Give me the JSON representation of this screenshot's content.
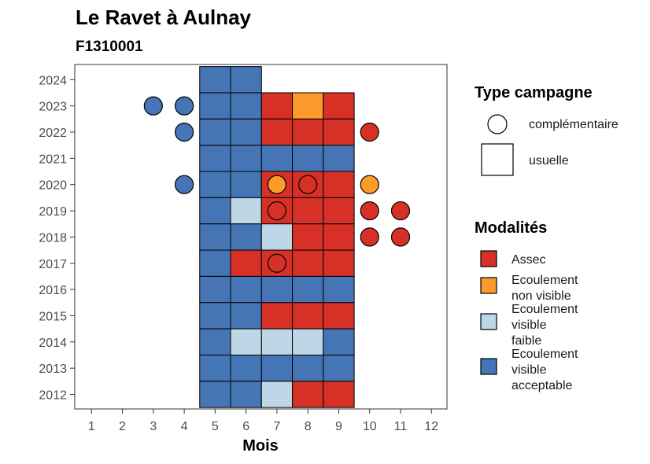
{
  "chart_data": {
    "type": "heatmap",
    "title": "Le Ravet à Aulnay",
    "subtitle": "F1310001",
    "xlabel": "Mois",
    "ylabel": "",
    "x_ticks": [
      "1",
      "2",
      "3",
      "4",
      "5",
      "6",
      "7",
      "8",
      "9",
      "10",
      "11",
      "12"
    ],
    "y_ticks": [
      "2012",
      "2013",
      "2014",
      "2015",
      "2016",
      "2017",
      "2018",
      "2019",
      "2020",
      "2021",
      "2022",
      "2023",
      "2024"
    ],
    "xlim": [
      0.5,
      12.5
    ],
    "ylim": [
      2011.5,
      2024.5
    ],
    "grid": false,
    "legend_position": "right",
    "modalities": [
      {
        "key": "assec",
        "label_lines": [
          "Assec"
        ],
        "color": "#d73027"
      },
      {
        "key": "nonvis",
        "label_lines": [
          "Ecoulement",
          "non visible"
        ],
        "color": "#fc9a2c"
      },
      {
        "key": "faible",
        "label_lines": [
          "Ecoulement",
          "visible",
          "faible"
        ],
        "color": "#bdd7e7"
      },
      {
        "key": "acceptable",
        "label_lines": [
          "Ecoulement",
          "visible",
          "acceptable"
        ],
        "color": "#4575b4"
      }
    ],
    "campaign_types": {
      "title": "Type campagne",
      "complementaire": "complémentaire",
      "usuelle": "usuelle"
    },
    "modalities_title": "Modalités",
    "usuelle": [
      {
        "year": 2024,
        "cells": [
          [
            5,
            "acceptable"
          ],
          [
            6,
            "acceptable"
          ]
        ]
      },
      {
        "year": 2023,
        "cells": [
          [
            5,
            "acceptable"
          ],
          [
            6,
            "acceptable"
          ],
          [
            7,
            "assec"
          ],
          [
            8,
            "nonvis"
          ],
          [
            9,
            "assec"
          ]
        ]
      },
      {
        "year": 2022,
        "cells": [
          [
            5,
            "acceptable"
          ],
          [
            6,
            "acceptable"
          ],
          [
            7,
            "assec"
          ],
          [
            8,
            "assec"
          ],
          [
            9,
            "assec"
          ]
        ]
      },
      {
        "year": 2021,
        "cells": [
          [
            5,
            "acceptable"
          ],
          [
            6,
            "acceptable"
          ],
          [
            7,
            "acceptable"
          ],
          [
            8,
            "acceptable"
          ],
          [
            9,
            "acceptable"
          ]
        ]
      },
      {
        "year": 2020,
        "cells": [
          [
            5,
            "acceptable"
          ],
          [
            6,
            "acceptable"
          ],
          [
            7,
            "assec"
          ],
          [
            8,
            "assec"
          ],
          [
            9,
            "assec"
          ]
        ]
      },
      {
        "year": 2019,
        "cells": [
          [
            5,
            "acceptable"
          ],
          [
            6,
            "faible"
          ],
          [
            7,
            "assec"
          ],
          [
            8,
            "assec"
          ],
          [
            9,
            "assec"
          ]
        ]
      },
      {
        "year": 2018,
        "cells": [
          [
            5,
            "acceptable"
          ],
          [
            6,
            "acceptable"
          ],
          [
            7,
            "faible"
          ],
          [
            8,
            "assec"
          ],
          [
            9,
            "assec"
          ]
        ]
      },
      {
        "year": 2017,
        "cells": [
          [
            5,
            "acceptable"
          ],
          [
            6,
            "assec"
          ],
          [
            7,
            "assec"
          ],
          [
            8,
            "assec"
          ],
          [
            9,
            "assec"
          ]
        ]
      },
      {
        "year": 2016,
        "cells": [
          [
            5,
            "acceptable"
          ],
          [
            6,
            "acceptable"
          ],
          [
            7,
            "acceptable"
          ],
          [
            8,
            "acceptable"
          ],
          [
            9,
            "acceptable"
          ]
        ]
      },
      {
        "year": 2015,
        "cells": [
          [
            5,
            "acceptable"
          ],
          [
            6,
            "acceptable"
          ],
          [
            7,
            "assec"
          ],
          [
            8,
            "assec"
          ],
          [
            9,
            "assec"
          ]
        ]
      },
      {
        "year": 2014,
        "cells": [
          [
            5,
            "acceptable"
          ],
          [
            6,
            "faible"
          ],
          [
            7,
            "faible"
          ],
          [
            8,
            "faible"
          ],
          [
            9,
            "acceptable"
          ]
        ]
      },
      {
        "year": 2013,
        "cells": [
          [
            5,
            "acceptable"
          ],
          [
            6,
            "acceptable"
          ],
          [
            7,
            "acceptable"
          ],
          [
            8,
            "acceptable"
          ],
          [
            9,
            "acceptable"
          ]
        ]
      },
      {
        "year": 2012,
        "cells": [
          [
            5,
            "acceptable"
          ],
          [
            6,
            "acceptable"
          ],
          [
            7,
            "faible"
          ],
          [
            8,
            "assec"
          ],
          [
            9,
            "assec"
          ]
        ]
      }
    ],
    "complementaire": [
      {
        "year": 2023,
        "month": 3,
        "modality": "acceptable"
      },
      {
        "year": 2023,
        "month": 4,
        "modality": "acceptable"
      },
      {
        "year": 2022,
        "month": 4,
        "modality": "acceptable"
      },
      {
        "year": 2022,
        "month": 10,
        "modality": "assec"
      },
      {
        "year": 2020,
        "month": 4,
        "modality": "acceptable"
      },
      {
        "year": 2020,
        "month": 7,
        "modality": "nonvis"
      },
      {
        "year": 2020,
        "month": 8,
        "modality": "assec"
      },
      {
        "year": 2020,
        "month": 10,
        "modality": "nonvis"
      },
      {
        "year": 2019,
        "month": 7,
        "modality": "assec"
      },
      {
        "year": 2019,
        "month": 10,
        "modality": "assec"
      },
      {
        "year": 2019,
        "month": 11,
        "modality": "assec"
      },
      {
        "year": 2018,
        "month": 10,
        "modality": "assec"
      },
      {
        "year": 2018,
        "month": 11,
        "modality": "assec"
      },
      {
        "year": 2017,
        "month": 7,
        "modality": "assec"
      }
    ]
  }
}
